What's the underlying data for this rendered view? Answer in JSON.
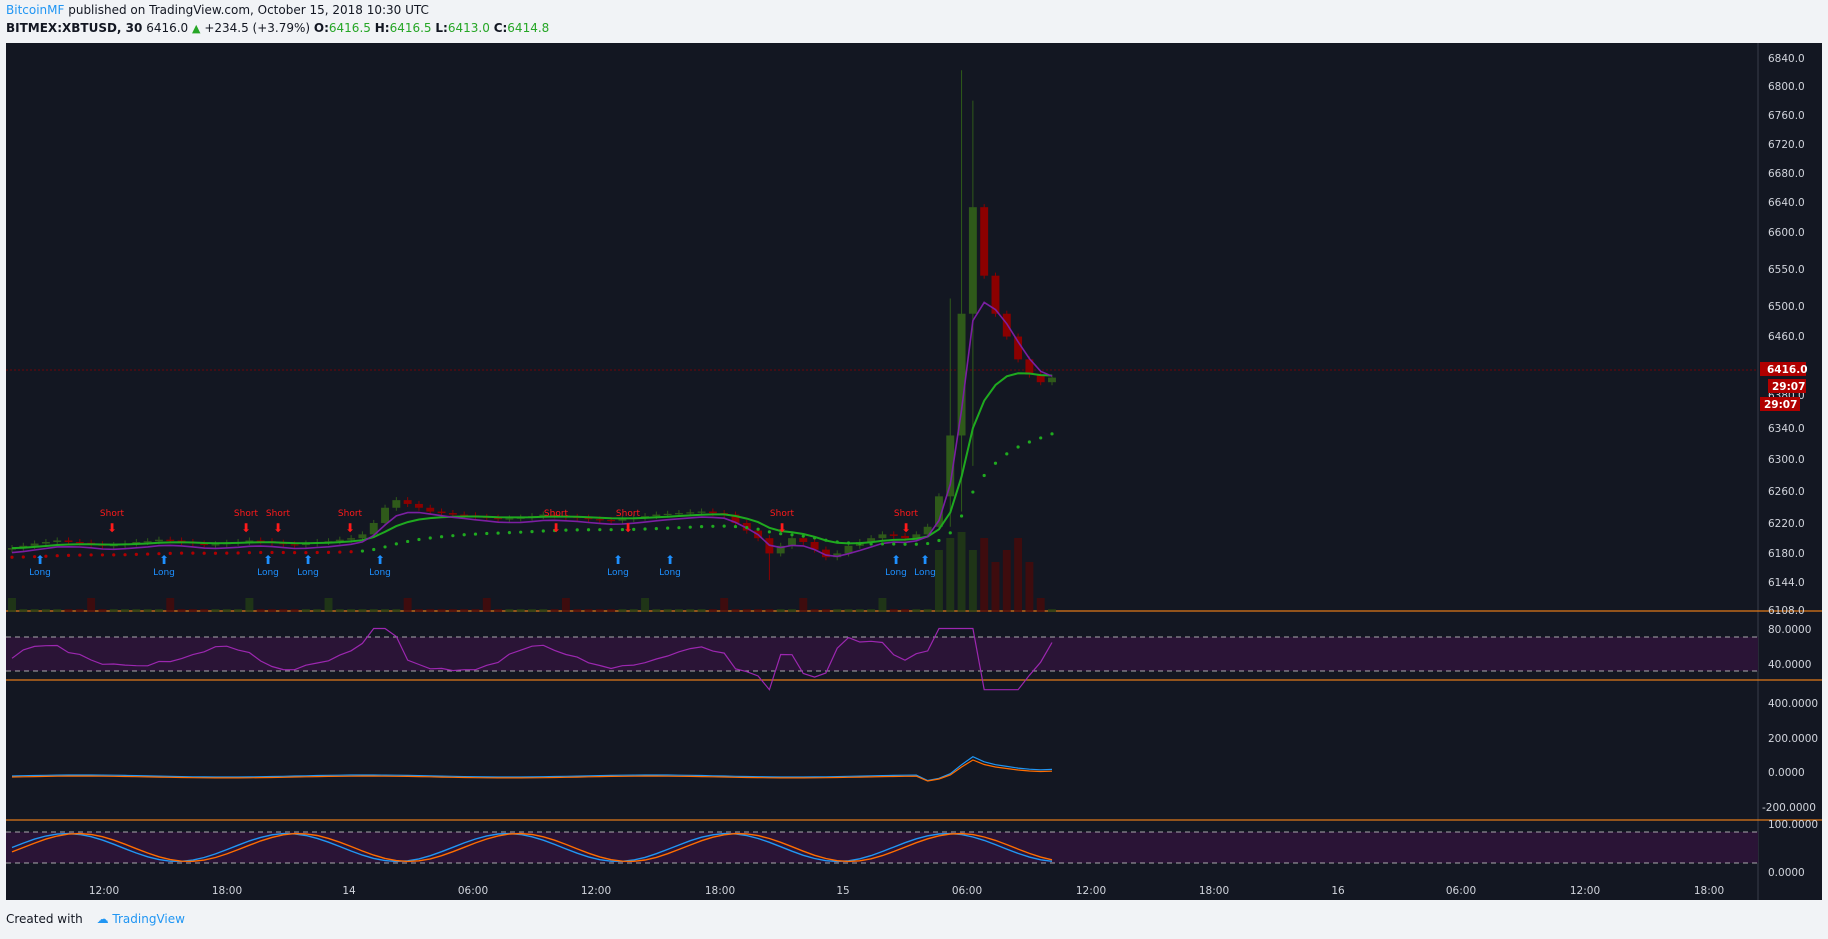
{
  "header": {
    "author": "BitcoinMF",
    "published_text": " published on TradingView.com, October 15, 2018 10:30 UTC",
    "symbol": "BITMEX:XBTUSD, 30",
    "last": "6416.0",
    "change_arrow": "▲",
    "change": "+234.5 (+3.79%)",
    "o_label": "O:",
    "o_value": "6416.5",
    "h_label": "H:",
    "h_value": "6416.5",
    "l_label": "L:",
    "l_value": "6413.0",
    "c_label": "C:",
    "c_value": "6414.8"
  },
  "footer": {
    "created_with": "Created with",
    "brand": "TradingView"
  },
  "colors": {
    "background": "#131722",
    "up": "#2f5a1a",
    "down": "#8b0000",
    "short_signal": "#ff1a1a",
    "long_signal": "#1e90ff",
    "ema": "#1faa1f",
    "purple_line": "#7b1fa2",
    "rsi_band": "#2a1436",
    "axis_border": "#e07a18"
  },
  "price_axis": {
    "labels": [
      "6840.0",
      "6800.0",
      "6760.0",
      "6720.0",
      "6680.0",
      "6640.0",
      "6600.0",
      "6550.0",
      "6500.0",
      "6460.0",
      "6420.0",
      "6380.0",
      "6340.0",
      "6300.0",
      "6260.0",
      "6220.0",
      "6180.0",
      "6144.0",
      "6108.0"
    ],
    "current_price": "6416.0",
    "countdown": "29:07",
    "countdown_2": "29:07"
  },
  "rsi_axis": {
    "labels": [
      "80.0000",
      "40.0000"
    ]
  },
  "macd_axis": {
    "labels": [
      "400.0000",
      "200.0000",
      "0.0000",
      "-200.0000"
    ]
  },
  "stoch_axis": {
    "labels": [
      "100.0000",
      "0.0000"
    ]
  },
  "time_axis": {
    "labels": [
      "12:00",
      "18:00",
      "14",
      "06:00",
      "12:00",
      "18:00",
      "15",
      "06:00",
      "12:00",
      "18:00",
      "16",
      "06:00",
      "12:00",
      "18:00"
    ]
  },
  "signals": {
    "short_label": "Short",
    "long_label": "Long"
  },
  "chart_data": {
    "type": "candlestick",
    "symbol": "BITMEX:XBTUSD",
    "interval": "30",
    "ylim": [
      6108,
      6840
    ],
    "close_series": [
      6192,
      6195,
      6198,
      6200,
      6202,
      6200,
      6199,
      6197,
      6195,
      6196,
      6198,
      6200,
      6201,
      6203,
      6202,
      6200,
      6198,
      6196,
      6197,
      6199,
      6200,
      6202,
      6201,
      6199,
      6197,
      6196,
      6198,
      6200,
      6201,
      6203,
      6205,
      6210,
      6225,
      6245,
      6255,
      6250,
      6245,
      6240,
      6238,
      6236,
      6235,
      6233,
      6232,
      6230,
      6231,
      6232,
      6234,
      6236,
      6235,
      6233,
      6232,
      6230,
      6229,
      6228,
      6230,
      6232,
      6234,
      6236,
      6237,
      6238,
      6239,
      6240,
      6238,
      6236,
      6225,
      6215,
      6205,
      6185,
      6195,
      6205,
      6200,
      6190,
      6180,
      6185,
      6195,
      6200,
      6205,
      6210,
      6208,
      6205,
      6210,
      6220,
      6260,
      6340,
      6500,
      6640,
      6550,
      6500,
      6470,
      6440,
      6420,
      6410,
      6416
    ],
    "signals": [
      {
        "type": "Short",
        "x": "11:00"
      },
      {
        "type": "Short",
        "x": "19:30"
      },
      {
        "type": "Short",
        "x": "21:00"
      },
      {
        "type": "Short",
        "x": "00:30"
      },
      {
        "type": "Short",
        "x": "10:00"
      },
      {
        "type": "Short",
        "x": "13:30"
      },
      {
        "type": "Short",
        "x": "21:30"
      },
      {
        "type": "Short",
        "x": "04:00"
      },
      {
        "type": "Long",
        "x": "09:30"
      },
      {
        "type": "Long",
        "x": "15:30"
      },
      {
        "type": "Long",
        "x": "20:30"
      },
      {
        "type": "Long",
        "x": "22:30"
      },
      {
        "type": "Long",
        "x": "02:00"
      },
      {
        "type": "Long",
        "x": "13:00"
      },
      {
        "type": "Long",
        "x": "15:30"
      },
      {
        "type": "Long",
        "x": "02:30"
      },
      {
        "type": "Long",
        "x": "04:00"
      }
    ]
  }
}
